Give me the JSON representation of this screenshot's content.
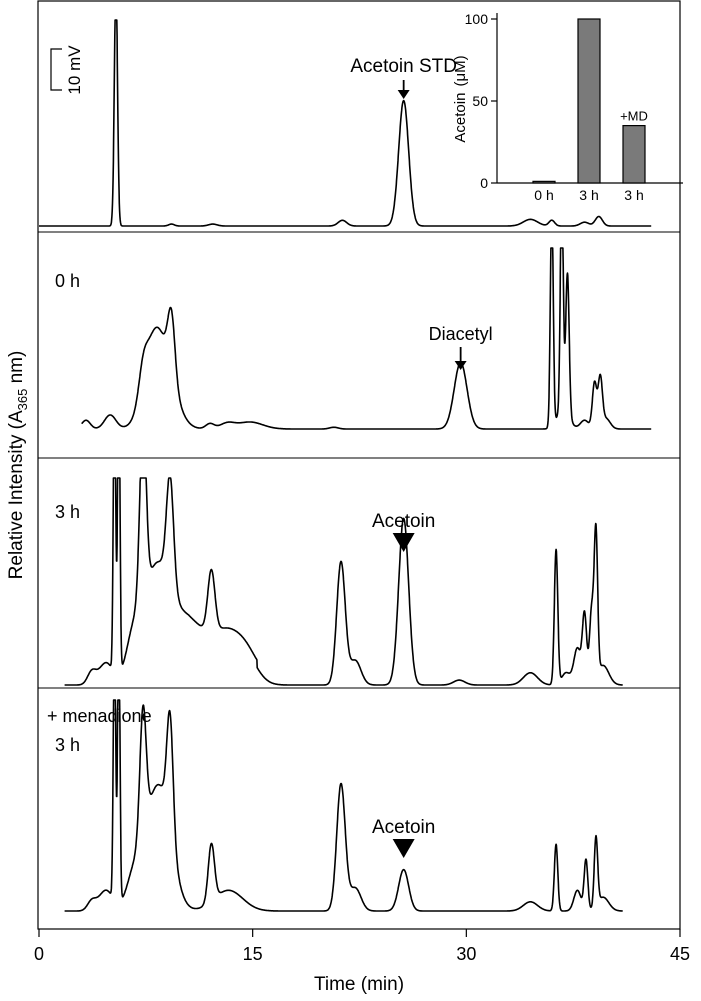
{
  "chart_data": [
    {
      "type": "line",
      "xlabel": "Time (min)",
      "ylabel": {
        "main": "Relative Intensity (A",
        "sub": "365",
        "unit": " nm)"
      },
      "xlim": [
        0,
        45
      ],
      "x_ticks": [
        "0",
        "15",
        "30",
        "45"
      ],
      "scale_bar": "10 mV",
      "panels": [
        {
          "id": "std",
          "label": "",
          "annotation": {
            "text": "Acetoin STD",
            "x": 25.6,
            "arrow": "line"
          },
          "peaks": [
            {
              "x": 5.4,
              "h": 1.3,
              "w": 0.11
            },
            {
              "x": 25.6,
              "h": 0.66,
              "w": 0.35
            },
            {
              "x": 21.3,
              "h": 0.03,
              "w": 0.3
            },
            {
              "x": 34.5,
              "h": 0.035,
              "w": 0.5
            },
            {
              "x": 36.0,
              "h": 0.03,
              "w": 0.2
            },
            {
              "x": 38.3,
              "h": 0.02,
              "w": 0.3
            },
            {
              "x": 39.3,
              "h": 0.05,
              "w": 0.25
            },
            {
              "x": 12.2,
              "h": 0.01,
              "w": 0.3
            },
            {
              "x": 9.3,
              "h": 0.01,
              "w": 0.2
            }
          ]
        },
        {
          "id": "0h",
          "label": "0 h",
          "annotation": {
            "text": "Diacetyl",
            "x": 29.6,
            "arrow": "line"
          },
          "peaks": [
            {
              "x": 3.3,
              "h": 0.05,
              "w": 0.3
            },
            {
              "x": 5.0,
              "h": 0.08,
              "w": 0.4
            },
            {
              "x": 7.3,
              "h": 0.14,
              "w": 0.3
            },
            {
              "x": 8.5,
              "h": 0.48,
              "w": 0.9
            },
            {
              "x": 9.3,
              "h": 0.35,
              "w": 0.25
            },
            {
              "x": 7.9,
              "h": 0.14,
              "w": 0.6
            },
            {
              "x": 12.0,
              "h": 0.03,
              "w": 0.3
            },
            {
              "x": 13.2,
              "h": 0.03,
              "w": 0.5
            },
            {
              "x": 14.8,
              "h": 0.04,
              "w": 0.9
            },
            {
              "x": 20.7,
              "h": 0.01,
              "w": 0.3
            },
            {
              "x": 29.6,
              "h": 0.38,
              "w": 0.45
            },
            {
              "x": 36.0,
              "h": 1.3,
              "w": 0.1
            },
            {
              "x": 36.7,
              "h": 1.3,
              "w": 0.1
            },
            {
              "x": 37.1,
              "h": 0.8,
              "w": 0.12
            },
            {
              "x": 36.8,
              "h": 0.12,
              "w": 0.4
            },
            {
              "x": 38.3,
              "h": 0.05,
              "w": 0.3
            },
            {
              "x": 39.0,
              "h": 0.26,
              "w": 0.15
            },
            {
              "x": 39.4,
              "h": 0.28,
              "w": 0.15
            },
            {
              "x": 39.8,
              "h": 0.06,
              "w": 0.3
            }
          ]
        },
        {
          "id": "3h",
          "label": "3 h",
          "annotation": {
            "text": "Acetoin",
            "x": 25.6,
            "arrow": "triangle"
          },
          "peaks": [
            {
              "x": 3.7,
              "h": 0.05,
              "w": 0.3
            },
            {
              "x": 4.7,
              "h": 0.09,
              "w": 0.5
            },
            {
              "x": 5.3,
              "h": 1.3,
              "w": 0.08
            },
            {
              "x": 5.6,
              "h": 1.3,
              "w": 0.08
            },
            {
              "x": 6.6,
              "h": 0.13,
              "w": 0.5
            },
            {
              "x": 7.3,
              "h": 0.75,
              "w": 0.22
            },
            {
              "x": 8.2,
              "h": 0.45,
              "w": 1.0
            },
            {
              "x": 9.2,
              "h": 0.45,
              "w": 0.25
            },
            {
              "x": 10.5,
              "h": 0.22,
              "w": 1.3
            },
            {
              "x": 12.1,
              "h": 0.25,
              "w": 0.25
            },
            {
              "x": 13.2,
              "h": 0.16,
              "w": 1.0
            },
            {
              "x": 14.6,
              "h": 0.08,
              "w": 0.8
            },
            {
              "x": 21.2,
              "h": 0.5,
              "w": 0.3
            },
            {
              "x": 22.2,
              "h": 0.1,
              "w": 0.4
            },
            {
              "x": 25.6,
              "h": 0.68,
              "w": 0.35
            },
            {
              "x": 29.5,
              "h": 0.02,
              "w": 0.4
            },
            {
              "x": 34.5,
              "h": 0.05,
              "w": 0.5
            },
            {
              "x": 36.3,
              "h": 0.55,
              "w": 0.12
            },
            {
              "x": 37.0,
              "h": 0.05,
              "w": 0.3
            },
            {
              "x": 37.8,
              "h": 0.15,
              "w": 0.25
            },
            {
              "x": 38.3,
              "h": 0.28,
              "w": 0.15
            },
            {
              "x": 38.8,
              "h": 0.3,
              "w": 0.15
            },
            {
              "x": 39.1,
              "h": 0.58,
              "w": 0.12
            },
            {
              "x": 39.6,
              "h": 0.08,
              "w": 0.4
            }
          ]
        },
        {
          "id": "md",
          "label": "+ menadione",
          "sublabel": "3 h",
          "annotation": {
            "text": "Acetoin",
            "x": 25.6,
            "arrow": "triangle"
          },
          "peaks": [
            {
              "x": 3.7,
              "h": 0.04,
              "w": 0.3
            },
            {
              "x": 4.7,
              "h": 0.09,
              "w": 0.5
            },
            {
              "x": 5.3,
              "h": 1.3,
              "w": 0.08
            },
            {
              "x": 5.6,
              "h": 1.3,
              "w": 0.08
            },
            {
              "x": 6.6,
              "h": 0.1,
              "w": 0.5
            },
            {
              "x": 7.3,
              "h": 0.55,
              "w": 0.22
            },
            {
              "x": 8.2,
              "h": 0.5,
              "w": 0.9
            },
            {
              "x": 9.2,
              "h": 0.5,
              "w": 0.22
            },
            {
              "x": 9.0,
              "h": 0.1,
              "w": 0.6
            },
            {
              "x": 12.1,
              "h": 0.25,
              "w": 0.22
            },
            {
              "x": 13.3,
              "h": 0.09,
              "w": 1.0
            },
            {
              "x": 21.2,
              "h": 0.55,
              "w": 0.3
            },
            {
              "x": 22.2,
              "h": 0.1,
              "w": 0.4
            },
            {
              "x": 25.6,
              "h": 0.18,
              "w": 0.35
            },
            {
              "x": 34.5,
              "h": 0.04,
              "w": 0.5
            },
            {
              "x": 36.3,
              "h": 0.29,
              "w": 0.12
            },
            {
              "x": 37.8,
              "h": 0.09,
              "w": 0.25
            },
            {
              "x": 38.4,
              "h": 0.22,
              "w": 0.13
            },
            {
              "x": 39.1,
              "h": 0.3,
              "w": 0.12
            },
            {
              "x": 39.6,
              "h": 0.06,
              "w": 0.4
            }
          ]
        }
      ]
    },
    {
      "type": "bar",
      "ylabel": {
        "main": "Acetoin",
        "unit": "(μM)"
      },
      "ylim": [
        0,
        100
      ],
      "y_ticks": [
        "0",
        "50",
        "100"
      ],
      "categories": [
        "0 h",
        "3 h",
        "3 h"
      ],
      "values": [
        1,
        100,
        35
      ],
      "bar_labels": [
        "",
        "",
        "+MD"
      ],
      "color": "#7a7a7a"
    }
  ]
}
